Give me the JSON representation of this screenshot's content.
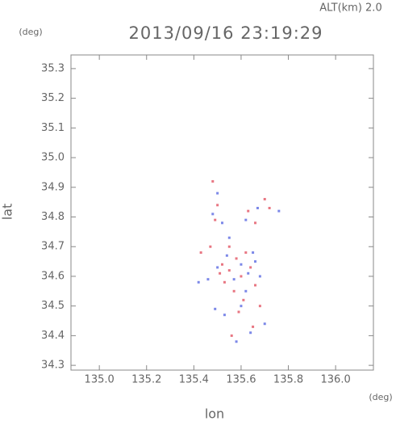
{
  "chart_data": {
    "type": "scatter",
    "corner_label": "ALT(km) 2.0",
    "title": "2013/09/16 23:19:29",
    "y_unit": "(deg)",
    "x_unit": "(deg)",
    "ylabel": "lat",
    "xlabel": "lon",
    "xlim": [
      134.88,
      136.16
    ],
    "ylim": [
      34.284,
      35.346
    ],
    "xticks": [
      {
        "value": 135,
        "label": "135.0"
      },
      135.2,
      135.4,
      135.6,
      135.8,
      {
        "value": 136,
        "label": "136.0"
      }
    ],
    "yticks": [
      34.3,
      34.4,
      34.5,
      34.6,
      34.7,
      34.8,
      34.9,
      {
        "value": 35,
        "label": "35.0"
      },
      35.1,
      35.2,
      35.3
    ],
    "series": [
      {
        "color": "#e04858",
        "x": [
          135.48,
          135.5,
          135.49,
          135.63,
          135.66,
          135.7,
          135.52,
          135.55,
          135.58,
          135.6,
          135.64,
          135.66,
          135.53,
          135.57,
          135.62,
          135.47,
          135.51,
          135.65,
          135.68,
          135.61,
          135.55,
          135.59,
          135.43,
          135.72,
          135.56
        ],
        "y": [
          34.92,
          34.84,
          34.79,
          34.82,
          34.78,
          34.86,
          34.64,
          34.62,
          34.66,
          34.6,
          34.63,
          34.57,
          34.58,
          34.55,
          34.68,
          34.7,
          34.61,
          34.43,
          34.5,
          34.52,
          34.7,
          34.48,
          34.68,
          34.83,
          34.4
        ]
      },
      {
        "color": "#5060e0",
        "x": [
          135.5,
          135.48,
          135.52,
          135.62,
          135.67,
          135.76,
          135.54,
          135.6,
          135.63,
          135.66,
          135.5,
          135.57,
          135.62,
          135.68,
          135.49,
          135.65,
          135.46,
          135.55,
          135.6,
          135.58,
          135.64,
          135.42,
          135.7,
          135.53
        ],
        "y": [
          34.88,
          34.81,
          34.78,
          34.79,
          34.83,
          34.82,
          34.67,
          34.64,
          34.61,
          34.65,
          34.63,
          34.59,
          34.55,
          34.6,
          34.49,
          34.68,
          34.59,
          34.73,
          34.5,
          34.38,
          34.41,
          34.58,
          34.44,
          34.47
        ]
      }
    ]
  }
}
